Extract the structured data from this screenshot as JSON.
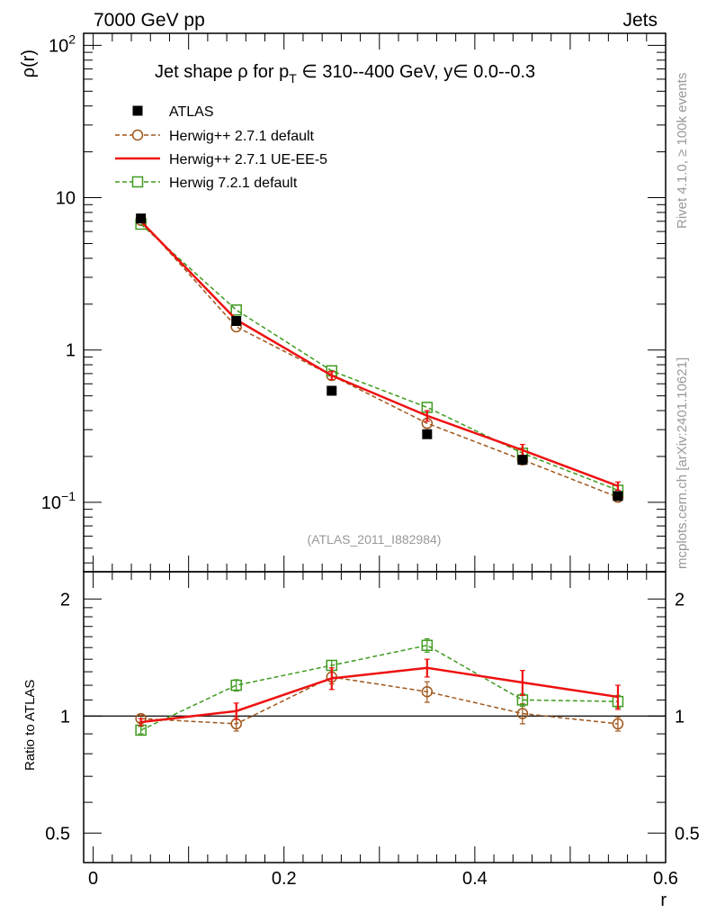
{
  "header": {
    "left": "7000 GeV pp",
    "right": "Jets"
  },
  "side": {
    "top": "Rivet 4.1.0, ≥ 100k events",
    "bottom": "mcplots.cern.ch [arXiv:2401.10621]"
  },
  "chart_data": [
    {
      "type": "line",
      "title_parts": {
        "a": "Jet shape ρ for p",
        "sub": "T",
        "b": " ∈ 310--400 GeV, y∈ 0.0--0.3"
      },
      "title": "Jet shape ρ for pT ∈ 310--400 GeV, y∈ 0.0--0.3",
      "ylabel": "ρ(r)",
      "yscale": "log",
      "ylim": [
        0.035,
        120
      ],
      "xlim": [
        -0.01,
        0.6
      ],
      "x": [
        0.05,
        0.15,
        0.25,
        0.35,
        0.45,
        0.55
      ],
      "y_tick_labels": [
        {
          "value": 100,
          "base": "10",
          "exp": "2"
        },
        {
          "value": 10,
          "base": "10",
          "exp": ""
        },
        {
          "value": 1,
          "base": "1",
          "exp": ""
        },
        {
          "value": 0.1,
          "base": "10",
          "exp": "−1"
        }
      ],
      "watermark": "(ATLAS_2011_I882984)",
      "legend_position": "top-left",
      "series": [
        {
          "name": "ATLAS",
          "style": "data",
          "color": "#000000",
          "values": [
            7.3,
            1.55,
            0.54,
            0.28,
            0.19,
            0.11
          ]
        },
        {
          "name": "Herwig++ 2.7.1 default",
          "style": "circle-dashed",
          "color": "#a0561a",
          "values": [
            7.1,
            1.42,
            0.68,
            0.33,
            0.19,
            0.108
          ]
        },
        {
          "name": "Herwig++ 2.7.1 UE-EE-5",
          "style": "solid",
          "color": "#ee1111",
          "values": [
            7.0,
            1.58,
            0.68,
            0.37,
            0.22,
            0.128
          ],
          "err": [
            0.12,
            0.05,
            0.04,
            0.03,
            0.02,
            0.008
          ]
        },
        {
          "name": "Herwig 7.2.1 default",
          "style": "square-dashed",
          "color": "#3f9b1f",
          "values": [
            6.7,
            1.83,
            0.73,
            0.42,
            0.21,
            0.12
          ]
        }
      ]
    },
    {
      "type": "line",
      "ylabel": "Ratio to ATLAS",
      "yscale": "log",
      "ylim": [
        0.42,
        2.35
      ],
      "xlim": [
        -0.01,
        0.6
      ],
      "xlabel": "r",
      "x": [
        0.05,
        0.15,
        0.25,
        0.35,
        0.45,
        0.55
      ],
      "x_ticks": [
        0,
        0.2,
        0.4,
        0.6
      ],
      "x_tick_labels": [
        "0",
        "0.2",
        "0.4",
        "0.6"
      ],
      "y_ticks": [
        0.5,
        1,
        2
      ],
      "y_tick_labels": [
        "0.5",
        "1",
        "2"
      ],
      "reference_line": 1,
      "series": [
        {
          "name": "Herwig++ 2.7.1 default",
          "style": "circle-dashed",
          "color": "#a0561a",
          "values": [
            0.985,
            0.955,
            1.26,
            1.155,
            1.015,
            0.955
          ],
          "err": [
            0.02,
            0.04,
            0.05,
            0.07,
            0.06,
            0.04
          ]
        },
        {
          "name": "Herwig++ 2.7.1 UE-EE-5",
          "style": "solid",
          "color": "#ee1111",
          "values": [
            0.965,
            1.03,
            1.25,
            1.33,
            1.22,
            1.12
          ],
          "err": [
            0.02,
            0.05,
            0.08,
            0.07,
            0.09,
            0.08
          ]
        },
        {
          "name": "Herwig 7.2.1 default",
          "style": "square-dashed",
          "color": "#3f9b1f",
          "values": [
            0.92,
            1.2,
            1.35,
            1.52,
            1.1,
            1.09
          ],
          "err": [
            0.02,
            0.04,
            0.04,
            0.06,
            0.04,
            0.04
          ]
        }
      ]
    }
  ]
}
